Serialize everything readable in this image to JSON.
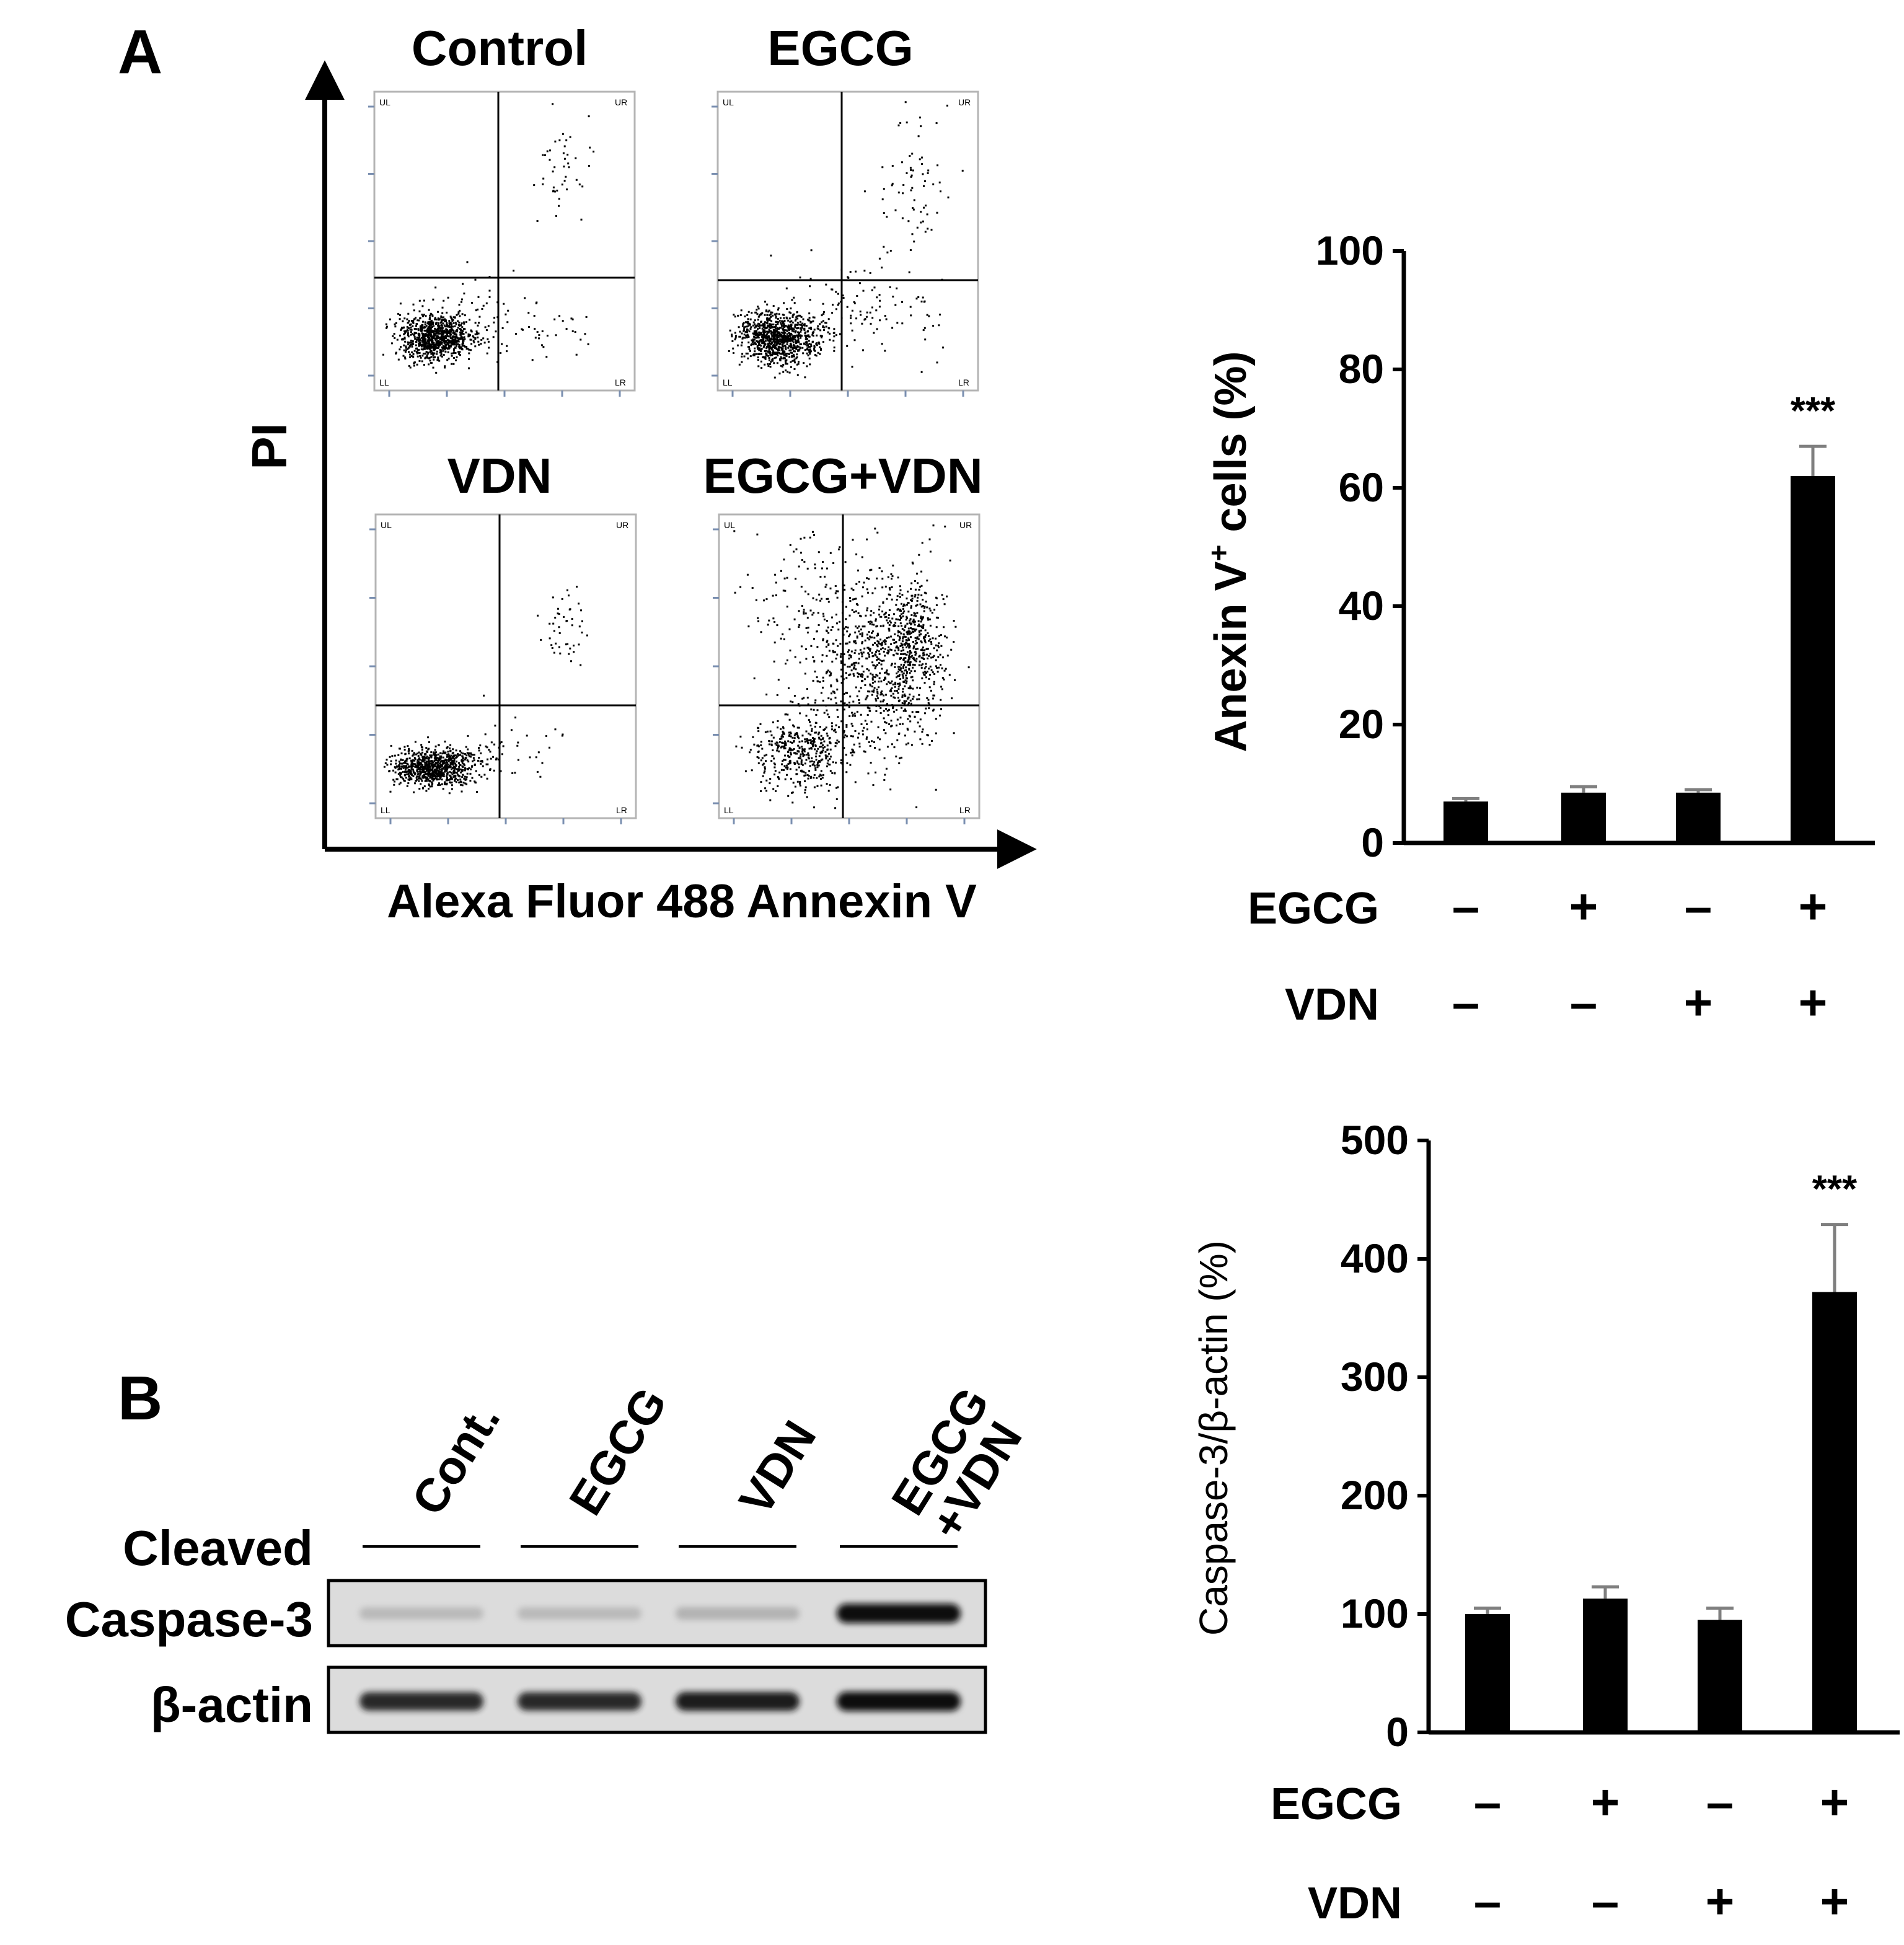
{
  "panel_labels": {
    "a": "A",
    "b": "B"
  },
  "flow": {
    "y_axis_label": "PI",
    "x_axis_label": "Alexa Fluor 488 Annexin V",
    "quadrant_labels": {
      "ul": "UL",
      "ur": "UR",
      "ll": "LL",
      "lr": "LR"
    },
    "plots": [
      {
        "title": "Control"
      },
      {
        "title": "EGCG"
      },
      {
        "title": "VDN"
      },
      {
        "title": "EGCG+VDN"
      }
    ]
  },
  "chart_data": [
    {
      "type": "bar",
      "ylabel_main": "Anexin V",
      "ylabel_sup": "+",
      "ylabel_rest": " cells (%)",
      "ylim": [
        0,
        100
      ],
      "yticks": [
        "0",
        "20",
        "40",
        "60",
        "80",
        "100"
      ],
      "values": [
        7,
        8.5,
        8.5,
        62
      ],
      "errors": [
        0.5,
        1,
        0.5,
        5
      ],
      "annotations": [
        "",
        "",
        "",
        "***"
      ],
      "conditions": [
        {
          "label": "EGCG",
          "signs": [
            "–",
            "+",
            "–",
            "+"
          ]
        },
        {
          "label": "VDN",
          "signs": [
            "–",
            "–",
            "+",
            "+"
          ]
        }
      ]
    },
    {
      "type": "bar",
      "ylabel": "Caspase-3/β-actin (%)",
      "ylim": [
        0,
        500
      ],
      "yticks": [
        "0",
        "100",
        "200",
        "300",
        "400",
        "500"
      ],
      "values": [
        100,
        113,
        95,
        372
      ],
      "errors": [
        5,
        10,
        10,
        57
      ],
      "annotations": [
        "",
        "",
        "",
        "***"
      ],
      "conditions": [
        {
          "label": "EGCG",
          "signs": [
            "–",
            "+",
            "–",
            "+"
          ]
        },
        {
          "label": "VDN",
          "signs": [
            "–",
            "–",
            "+",
            "+"
          ]
        }
      ]
    }
  ],
  "blot": {
    "lanes": [
      "Cont.",
      "EGCG",
      "VDN",
      "EGCG\n+VDN"
    ],
    "rows": [
      {
        "label_lines": [
          "Cleaved",
          "Caspase-3"
        ],
        "intensity": [
          0.25,
          0.25,
          0.3,
          1.0
        ]
      },
      {
        "label_lines": [
          "β-actin"
        ],
        "intensity": [
          0.9,
          0.9,
          0.95,
          1.0
        ]
      }
    ]
  }
}
